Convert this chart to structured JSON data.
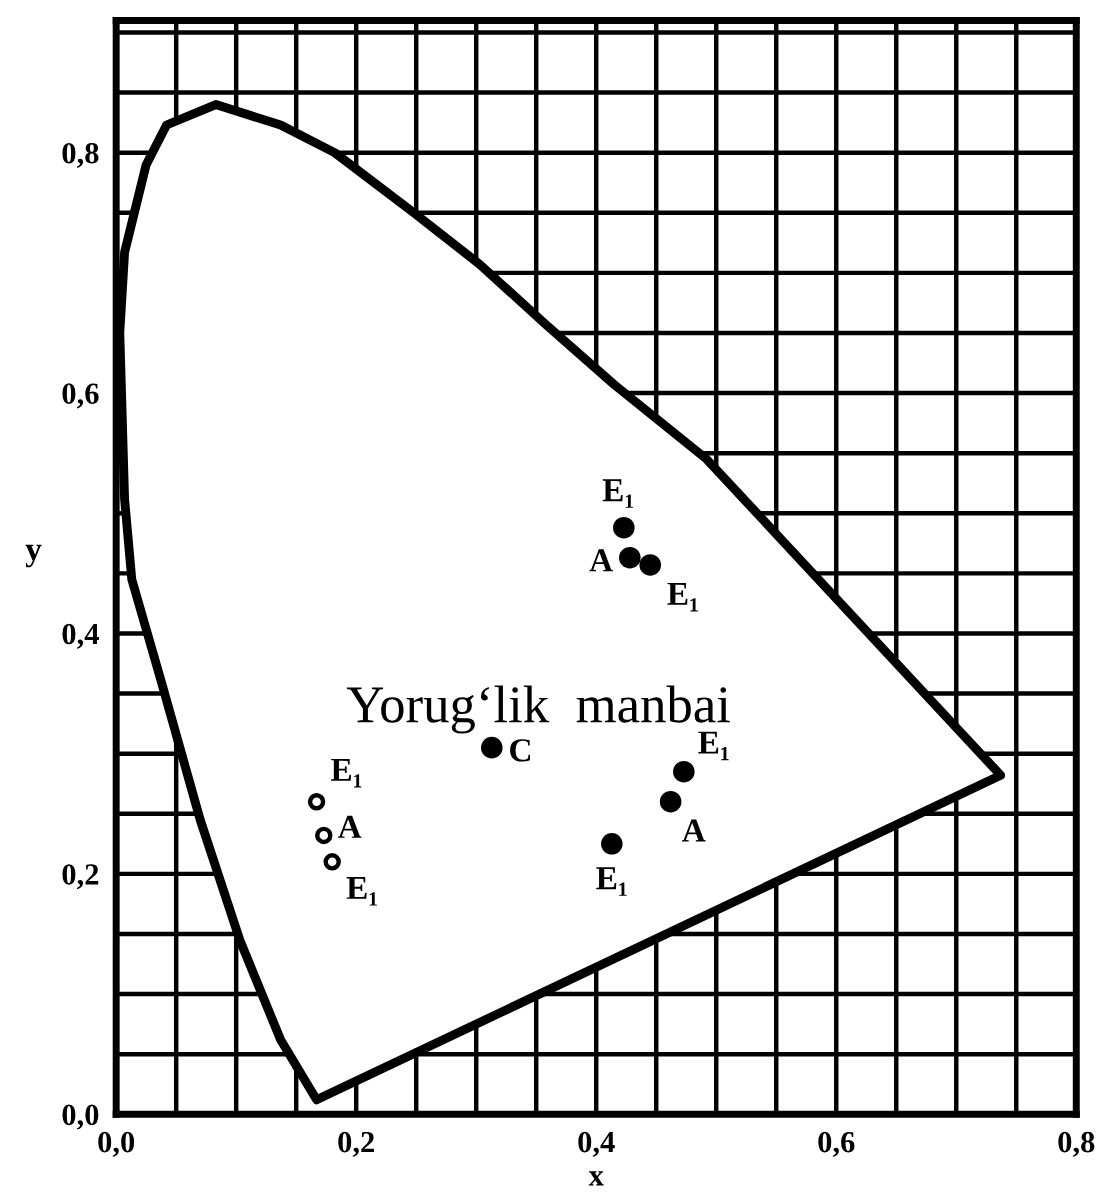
{
  "chart_data": {
    "type": "area",
    "xlabel": "x",
    "ylabel": "y",
    "xlim": [
      0,
      0.8
    ],
    "ylim": [
      0,
      0.91
    ],
    "xticks": [
      {
        "value": 0,
        "label": "0,0"
      },
      {
        "value": 0.05,
        "label": null
      },
      {
        "value": 0.1,
        "label": null
      },
      {
        "value": 0.15,
        "label": null
      },
      {
        "value": 0.2,
        "label": "0,2"
      },
      {
        "value": 0.25,
        "label": null
      },
      {
        "value": 0.3,
        "label": null
      },
      {
        "value": 0.35,
        "label": null
      },
      {
        "value": 0.4,
        "label": "0,4"
      },
      {
        "value": 0.45,
        "label": null
      },
      {
        "value": 0.5,
        "label": null
      },
      {
        "value": 0.55,
        "label": null
      },
      {
        "value": 0.6,
        "label": "0,6"
      },
      {
        "value": 0.65,
        "label": null
      },
      {
        "value": 0.7,
        "label": null
      },
      {
        "value": 0.75,
        "label": null
      },
      {
        "value": 0.8,
        "label": "0,8"
      }
    ],
    "yticks": [
      {
        "value": 0,
        "label": "0,0"
      },
      {
        "value": 0.05,
        "label": null
      },
      {
        "value": 0.1,
        "label": null
      },
      {
        "value": 0.15,
        "label": null
      },
      {
        "value": 0.2,
        "label": "0,2"
      },
      {
        "value": 0.25,
        "label": null
      },
      {
        "value": 0.3,
        "label": null
      },
      {
        "value": 0.35,
        "label": null
      },
      {
        "value": 0.4,
        "label": "0,4"
      },
      {
        "value": 0.45,
        "label": null
      },
      {
        "value": 0.5,
        "label": null
      },
      {
        "value": 0.55,
        "label": null
      },
      {
        "value": 0.6,
        "label": "0,6"
      },
      {
        "value": 0.65,
        "label": null
      },
      {
        "value": 0.7,
        "label": null
      },
      {
        "value": 0.75,
        "label": null
      },
      {
        "value": 0.8,
        "label": "0,8"
      },
      {
        "value": 0.85,
        "label": null
      },
      {
        "value": 0.9,
        "label": null
      }
    ],
    "grid": true,
    "series": [
      {
        "color": "#000000",
        "x": [
          0.167,
          0.137,
          0.103,
          0.07,
          0.037,
          0.013,
          0.007,
          0.003,
          0.007,
          0.025,
          0.042,
          0.083,
          0.137,
          0.182,
          0.248,
          0.303,
          0.358,
          0.415,
          0.492,
          0.737,
          0.167
        ],
        "values": [
          0.012,
          0.062,
          0.145,
          0.245,
          0.362,
          0.445,
          0.512,
          0.65,
          0.717,
          0.79,
          0.823,
          0.84,
          0.823,
          0.8,
          0.75,
          0.707,
          0.657,
          0.607,
          0.545,
          0.282,
          0.012
        ]
      },
      {
        "type": "scatter",
        "color": "#000000",
        "marker": "circle",
        "x": [
          0.423,
          0.428,
          0.445,
          0.473,
          0.462,
          0.413,
          0.313
        ],
        "values": [
          0.488,
          0.463,
          0.457,
          0.285,
          0.26,
          0.225,
          0.305
        ]
      },
      {
        "type": "scatter",
        "color": "#ffffff",
        "marker": "circle",
        "x": [
          0.167,
          0.173,
          0.18
        ],
        "values": [
          0.26,
          0.232,
          0.21
        ]
      }
    ],
    "annotations": [
      {
        "text": "E₁",
        "x": 0.423,
        "y": 0.488
      },
      {
        "text": "A",
        "x": 0.428,
        "y": 0.463
      },
      {
        "text": "E₁",
        "x": 0.445,
        "y": 0.457
      },
      {
        "text": "E₁",
        "x": 0.473,
        "y": 0.285
      },
      {
        "text": "A",
        "x": 0.462,
        "y": 0.26
      },
      {
        "text": "E₁",
        "x": 0.413,
        "y": 0.225
      },
      {
        "text": "C",
        "x": 0.313,
        "y": 0.305
      },
      {
        "text": "E₁",
        "x": 0.167,
        "y": 0.26
      },
      {
        "text": "A",
        "x": 0.173,
        "y": 0.232
      },
      {
        "text": "E₁",
        "x": 0.18,
        "y": 0.21
      },
      "Yorug‘lik  manbai"
    ]
  }
}
